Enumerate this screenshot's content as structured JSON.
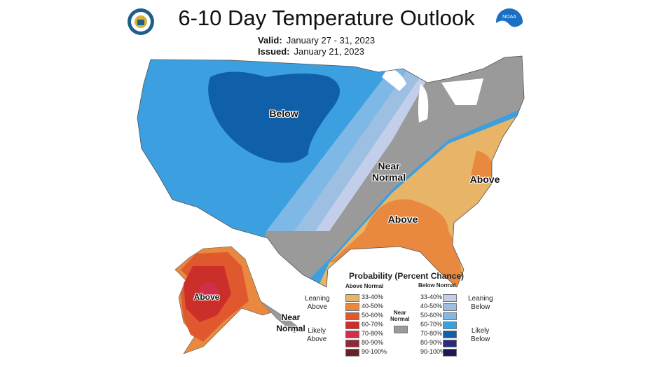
{
  "header": {
    "title": "6-10 Day Temperature Outlook",
    "valid_label": "Valid:",
    "valid_value": "January 27 - 31, 2023",
    "issued_label": "Issued:",
    "issued_value": "January 21, 2023",
    "logos": [
      "commerce-seal-icon",
      "noaa-logo-icon"
    ],
    "noaa_text": "NOAA"
  },
  "map": {
    "labels": {
      "below": "Below",
      "near_normal": "Near\nNormal",
      "above_se": "Above",
      "above_east": "Above",
      "above_alaska": "Above",
      "near_normal_alaska": "Near\nNormal"
    }
  },
  "legend": {
    "title": "Probability (Percent Chance)",
    "above_header": "Above Normal",
    "below_header": "Below Normal",
    "leaning_above": "Leaning\nAbove",
    "likely_above": "Likely\nAbove",
    "leaning_below": "Leaning\nBelow",
    "likely_below": "Likely\nBelow",
    "near_normal": "Near\nNormal",
    "near_normal_color": "#9a9a9a",
    "above": [
      {
        "range": "33-40%",
        "color": "#e8b467"
      },
      {
        "range": "40-50%",
        "color": "#e8893f"
      },
      {
        "range": "50-60%",
        "color": "#e0582e"
      },
      {
        "range": "60-70%",
        "color": "#cc2f2a"
      },
      {
        "range": "70-80%",
        "color": "#d12e4a"
      },
      {
        "range": "80-90%",
        "color": "#8e2a36"
      },
      {
        "range": "90-100%",
        "color": "#66222a"
      }
    ],
    "below": [
      {
        "range": "33-40%",
        "color": "#c3cfea"
      },
      {
        "range": "40-50%",
        "color": "#9cbfe2"
      },
      {
        "range": "50-60%",
        "color": "#7db8e6"
      },
      {
        "range": "60-70%",
        "color": "#3c9fe0"
      },
      {
        "range": "70-80%",
        "color": "#0f60a8"
      },
      {
        "range": "80-90%",
        "color": "#2c2a80"
      },
      {
        "range": "90-100%",
        "color": "#1c1a52"
      }
    ]
  }
}
